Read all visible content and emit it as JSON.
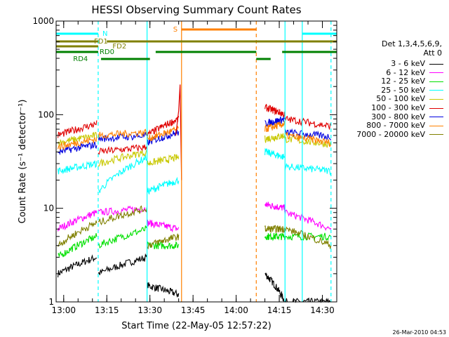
{
  "chart_data": {
    "type": "line",
    "title": "HESSI Observing Summary Count Rates",
    "xlabel": "Start Time (22-May-05 12:57:22)",
    "ylabel": "Count Rate (s⁻¹ detector⁻¹)",
    "x_ticks": [
      "13:00",
      "13:15",
      "13:30",
      "13:45",
      "14:00",
      "14:15",
      "14:30"
    ],
    "y_ticks": [
      "1",
      "10",
      "100",
      "1000"
    ],
    "xlim": [
      "12:57:22",
      "14:35"
    ],
    "ylim": [
      1,
      1000
    ],
    "y_scale": "log",
    "legend_header": [
      "Det 1,3,4,5,6,9,",
      "Att 0"
    ],
    "legend_placement": "right",
    "footer_timestamp": "26-Mar-2010 04:53",
    "series": [
      {
        "name": "3 - 6 keV",
        "color": "#000000"
      },
      {
        "name": "6 - 12 keV",
        "color": "#ff00ff"
      },
      {
        "name": "12 - 25 keV",
        "color": "#00e000"
      },
      {
        "name": "25 - 50 keV",
        "color": "#00ffff"
      },
      {
        "name": "50 - 100 keV",
        "color": "#c8c800"
      },
      {
        "name": "100 - 300 keV",
        "color": "#e00000"
      },
      {
        "name": "300 - 800 keV",
        "color": "#0000e0"
      },
      {
        "name": "800 - 7000 keV",
        "color": "#ff8000"
      },
      {
        "name": "7000 - 20000 keV",
        "color": "#808000"
      }
    ],
    "flag_bars": [
      {
        "label": "N",
        "color": "#00ffff",
        "segments": [
          [
            "12:57:22",
            "13:12"
          ],
          [
            "14:23",
            "14:35"
          ]
        ]
      },
      {
        "label": "S",
        "color": "#ff8000",
        "segments": [
          [
            "13:41",
            "14:07"
          ]
        ]
      },
      {
        "label": "FD1",
        "color": "#808000",
        "segments": [
          [
            "12:57:22",
            "13:12"
          ],
          [
            "13:15",
            "14:35"
          ]
        ]
      },
      {
        "label": "FD2",
        "color": "#808000",
        "segments": [
          [
            "12:57:22",
            "13:12"
          ]
        ]
      },
      {
        "label": "RD0",
        "color": "#008000",
        "segments": [
          [
            "12:57:22",
            "13:12"
          ],
          [
            "13:32",
            "14:07"
          ],
          [
            "14:16",
            "14:35"
          ]
        ]
      },
      {
        "label": "RD4",
        "color": "#008000",
        "segments": [
          [
            "13:13",
            "13:30"
          ],
          [
            "14:07",
            "14:12"
          ]
        ]
      }
    ],
    "vertical_markers": [
      {
        "time": "13:12",
        "color": "#00ffff",
        "style": "dashed"
      },
      {
        "time": "13:29",
        "color": "#00ffff",
        "style": "solid"
      },
      {
        "time": "13:41",
        "color": "#ff8000",
        "style": "solid"
      },
      {
        "time": "14:07",
        "color": "#ff8000",
        "style": "dashed"
      },
      {
        "time": "14:17",
        "color": "#00ffff",
        "style": "solid"
      },
      {
        "time": "14:23",
        "color": "#00ffff",
        "style": "solid"
      },
      {
        "time": "14:33",
        "color": "#00ffff",
        "style": "dashed"
      }
    ]
  }
}
